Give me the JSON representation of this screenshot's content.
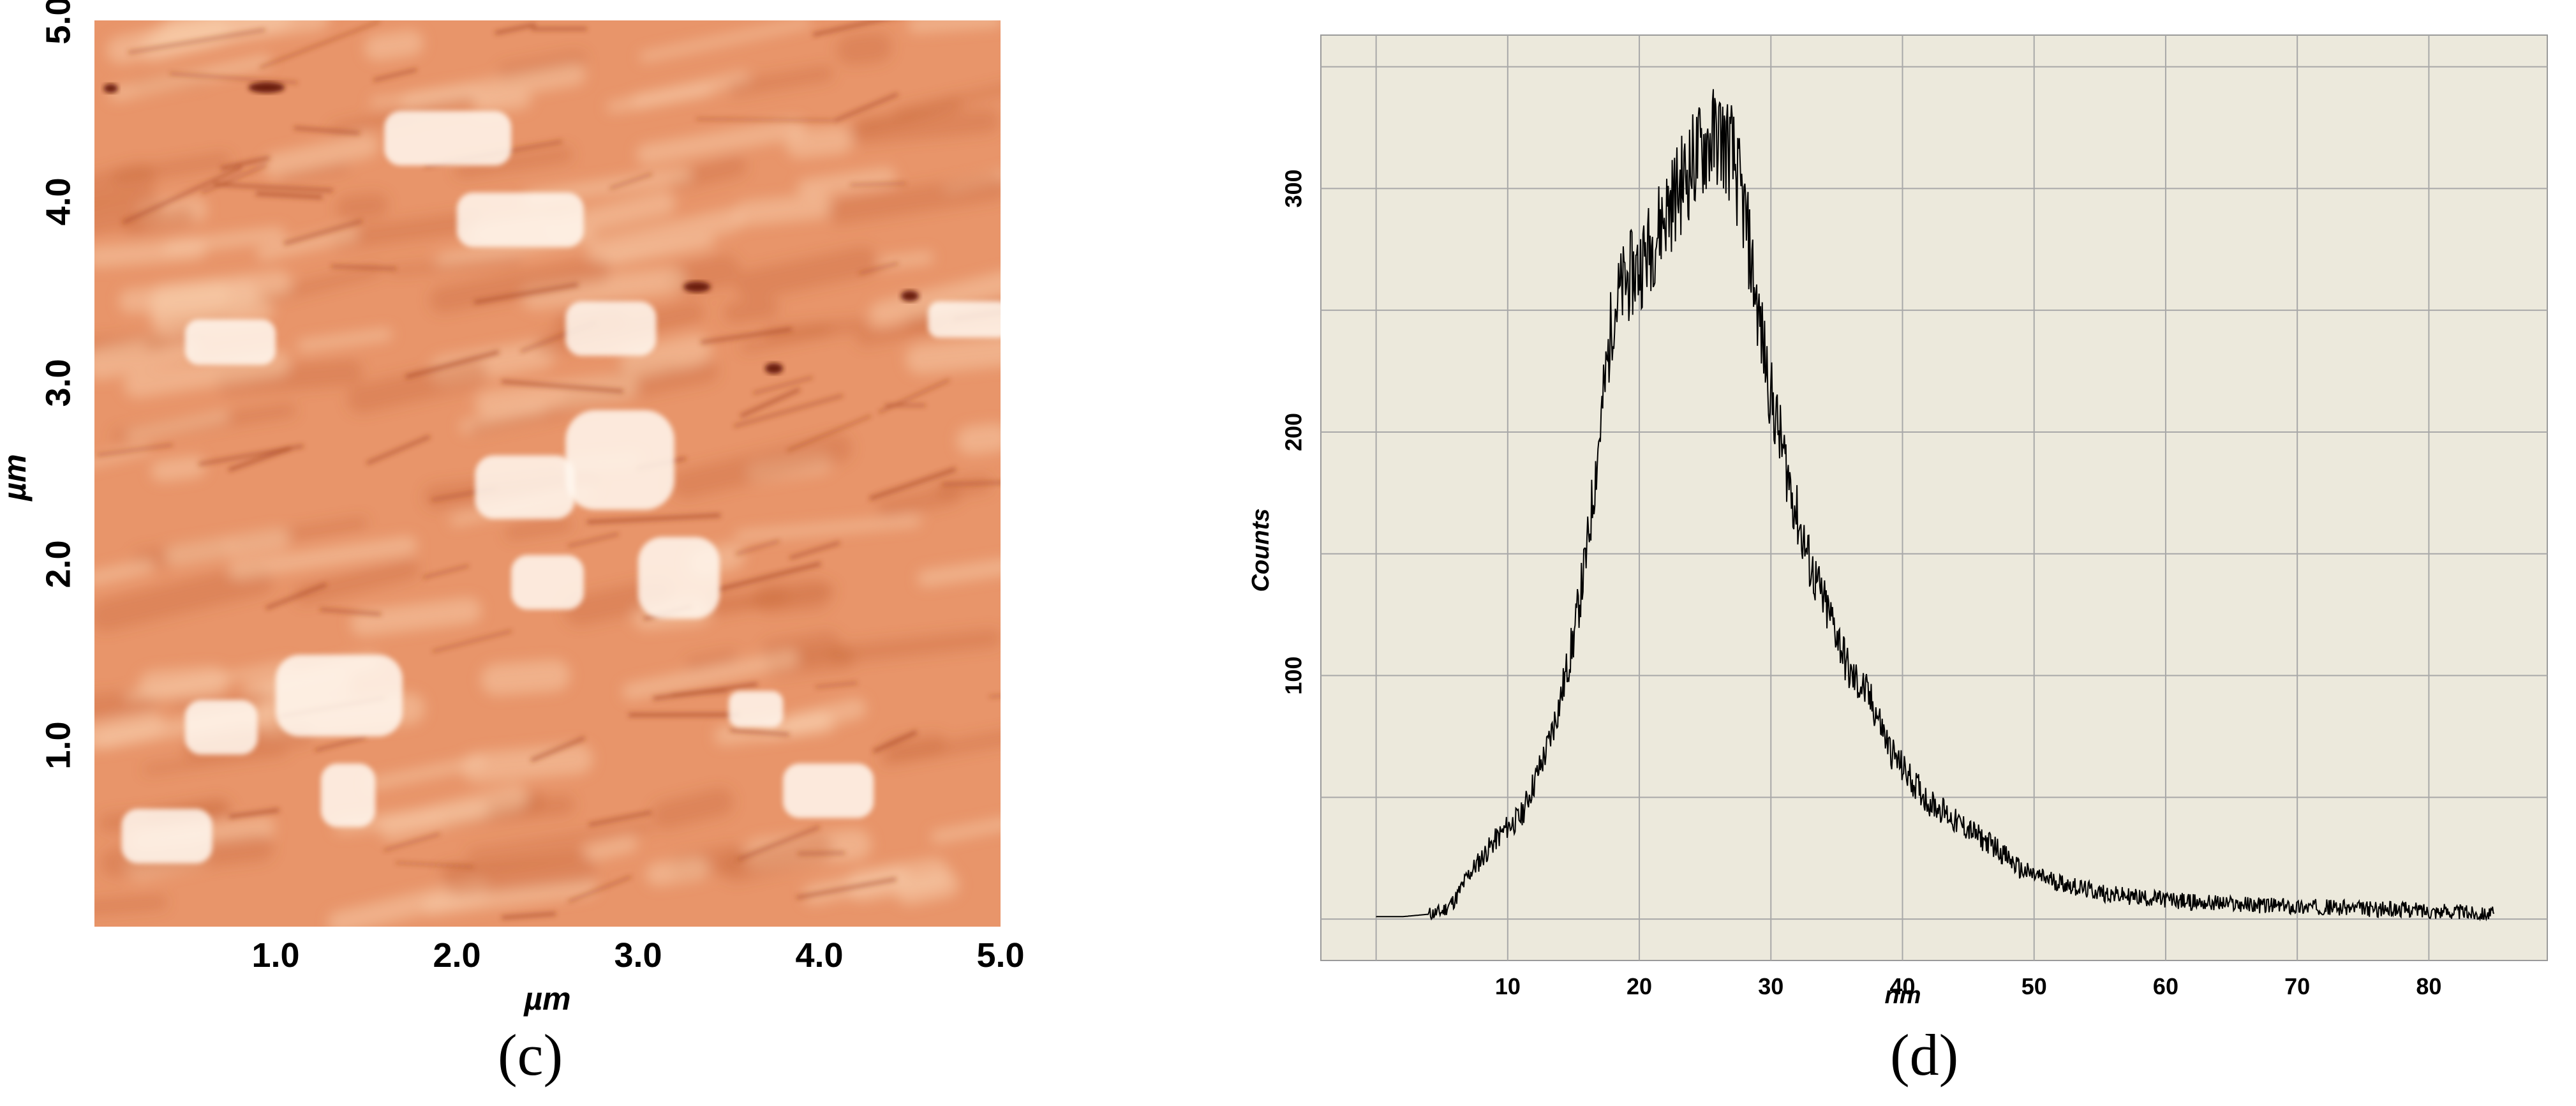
{
  "panels": {
    "c": {
      "label": "(c)"
    },
    "d": {
      "label": "(d)"
    }
  },
  "chart_data": [
    {
      "type": "heatmap",
      "xlabel": "µm",
      "ylabel": "µm",
      "xlim": [
        0,
        5.0
      ],
      "ylim": [
        0,
        5.0
      ],
      "x_ticks": [
        "1.0",
        "2.0",
        "3.0",
        "4.0",
        "5.0"
      ],
      "y_ticks": [
        "1.0",
        "2.0",
        "3.0",
        "4.0",
        "5.0"
      ],
      "colors": {
        "low": "#6b1a08",
        "mid": "#e8956a",
        "high": "#fff8f0"
      },
      "features": [
        {
          "kind": "bright-grain",
          "x": 2.6,
          "y": 2.3,
          "w": 0.6,
          "h": 0.55
        },
        {
          "kind": "bright-grain",
          "x": 2.1,
          "y": 2.25,
          "w": 0.55,
          "h": 0.35
        },
        {
          "kind": "bright-grain",
          "x": 3.0,
          "y": 1.7,
          "w": 0.45,
          "h": 0.45
        },
        {
          "kind": "bright-grain",
          "x": 2.3,
          "y": 1.75,
          "w": 0.4,
          "h": 0.3
        },
        {
          "kind": "bright-grain",
          "x": 1.0,
          "y": 1.05,
          "w": 0.7,
          "h": 0.45
        },
        {
          "kind": "bright-grain",
          "x": 0.5,
          "y": 0.95,
          "w": 0.4,
          "h": 0.3
        },
        {
          "kind": "bright-grain",
          "x": 1.25,
          "y": 0.55,
          "w": 0.3,
          "h": 0.35
        },
        {
          "kind": "bright-grain",
          "x": 2.0,
          "y": 3.75,
          "w": 0.7,
          "h": 0.3
        },
        {
          "kind": "bright-grain",
          "x": 2.6,
          "y": 3.15,
          "w": 0.5,
          "h": 0.3
        },
        {
          "kind": "bright-grain",
          "x": 1.6,
          "y": 4.2,
          "w": 0.7,
          "h": 0.3
        },
        {
          "kind": "bright-grain",
          "x": 0.5,
          "y": 3.1,
          "w": 0.5,
          "h": 0.25
        },
        {
          "kind": "bright-grain",
          "x": 0.15,
          "y": 0.35,
          "w": 0.5,
          "h": 0.3
        },
        {
          "kind": "bright-grain",
          "x": 3.5,
          "y": 1.1,
          "w": 0.3,
          "h": 0.2
        },
        {
          "kind": "bright-grain",
          "x": 4.6,
          "y": 3.25,
          "w": 0.45,
          "h": 0.2
        },
        {
          "kind": "bright-grain",
          "x": 3.8,
          "y": 0.6,
          "w": 0.5,
          "h": 0.3
        },
        {
          "kind": "dark-pit",
          "x": 3.25,
          "y": 3.5,
          "w": 0.15,
          "h": 0.06
        },
        {
          "kind": "dark-pit",
          "x": 3.7,
          "y": 3.05,
          "w": 0.1,
          "h": 0.06
        },
        {
          "kind": "dark-pit",
          "x": 4.45,
          "y": 3.45,
          "w": 0.1,
          "h": 0.06
        },
        {
          "kind": "dark-pit",
          "x": 0.05,
          "y": 4.6,
          "w": 0.08,
          "h": 0.05
        },
        {
          "kind": "dark-pit",
          "x": 0.85,
          "y": 4.6,
          "w": 0.2,
          "h": 0.06
        }
      ]
    },
    {
      "type": "line",
      "xlabel": "nm",
      "ylabel": "Counts",
      "xlim": [
        -4.2,
        89
      ],
      "ylim": [
        -17,
        363
      ],
      "x_ticks": [
        10,
        20,
        30,
        40,
        50,
        60,
        70,
        80
      ],
      "y_ticks": [
        100,
        200,
        300
      ],
      "grid": true,
      "background": "#ece9dc",
      "line_color": "#000000",
      "series": [
        {
          "x": [
            0,
            2,
            4,
            5,
            6,
            7,
            8,
            9,
            10,
            11,
            12,
            13,
            14,
            15,
            16,
            17,
            18,
            19,
            20,
            21,
            22,
            23,
            24,
            25,
            26,
            27,
            28,
            29,
            30,
            31,
            32,
            33,
            34,
            35,
            36,
            37,
            38,
            39,
            40,
            41,
            42,
            43,
            44,
            45,
            46,
            47,
            48,
            49,
            50,
            52,
            54,
            56,
            58,
            60,
            62,
            64,
            66,
            68,
            70,
            72,
            74,
            76,
            78,
            80,
            82,
            85
          ],
          "y": [
            1,
            1,
            2,
            3,
            8,
            18,
            25,
            32,
            38,
            42,
            56,
            70,
            90,
            115,
            150,
            200,
            250,
            262,
            268,
            278,
            290,
            300,
            310,
            318,
            322,
            315,
            290,
            250,
            215,
            190,
            165,
            145,
            130,
            118,
            100,
            95,
            85,
            70,
            62,
            55,
            48,
            45,
            40,
            37,
            33,
            30,
            25,
            20,
            18,
            15,
            12,
            10,
            9,
            8,
            7,
            6.5,
            6,
            5.5,
            5,
            5,
            4.5,
            4,
            4,
            3.5,
            3,
            2
          ]
        }
      ]
    }
  ]
}
